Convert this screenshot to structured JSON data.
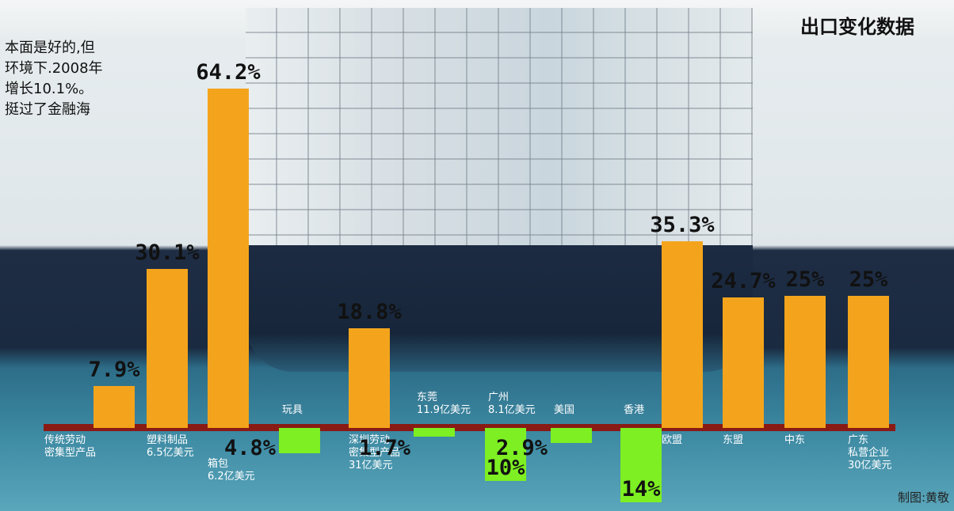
{
  "chart_data": {
    "type": "bar",
    "title": "出口变化数据",
    "intro_text": [
      "本面是好的,但",
      "环境下.2008年",
      "增长10.1%。",
      "挺过了金融海"
    ],
    "credit": "制图:黄敬",
    "categories": [
      "传统劳动\n密集型产品",
      "塑料制品\n6.5亿美元",
      "箱包\n6.2亿美元",
      "玩具",
      "深圳劳动\n密集型产品\n31亿美元",
      "东莞\n11.9亿美元",
      "广州\n8.1亿美元",
      "美国",
      "香港",
      "欧盟",
      "东盟",
      "中东",
      "广东\n私营企业\n30亿美元"
    ],
    "values": [
      7.9,
      30.1,
      64.2,
      -4.8,
      18.8,
      -1.7,
      -10,
      -2.9,
      -14,
      35.3,
      24.7,
      25,
      25
    ],
    "value_labels": [
      "7.9%",
      "30.1%",
      "64.2%",
      "4.8%",
      "18.8%",
      "1.7%",
      "10%",
      "2.9%",
      "14%",
      "35.3%",
      "24.7%",
      "25%",
      "25%"
    ],
    "positive_color": "#f4a41c",
    "negative_color": "#7def22",
    "baseline_color": "#8a1a14"
  }
}
